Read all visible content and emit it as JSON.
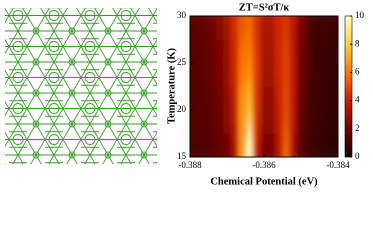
{
  "chart_data": {
    "type": "heatmap",
    "title": "ZT=S²σT/κ",
    "xlabel": "Chemical Potential (eV)",
    "ylabel": "Temperature (K)",
    "x": [
      -0.388,
      -0.3878,
      -0.3876,
      -0.3874,
      -0.3872,
      -0.387,
      -0.3868,
      -0.3866,
      -0.3864,
      -0.3862,
      -0.386,
      -0.3858,
      -0.3856,
      -0.3854,
      -0.3852,
      -0.385,
      -0.3848,
      -0.3846,
      -0.3844,
      -0.3842,
      -0.384
    ],
    "y": [
      15,
      20,
      25,
      30
    ],
    "z": [
      [
        1.2,
        1.2,
        1.3,
        1.4,
        1.6,
        2.0,
        3.0,
        6.5,
        10,
        4.0,
        2.2,
        2.2,
        3.5,
        5.5,
        3.0,
        1.4,
        0.9,
        0.7,
        0.6,
        0.5,
        0.5
      ],
      [
        1.4,
        1.4,
        1.5,
        1.7,
        2.0,
        2.6,
        3.8,
        6.5,
        7.5,
        4.5,
        2.8,
        2.8,
        4.0,
        5.0,
        3.5,
        1.8,
        1.1,
        0.8,
        0.7,
        0.6,
        0.6
      ],
      [
        1.5,
        1.5,
        1.7,
        1.9,
        2.3,
        3.0,
        4.2,
        5.8,
        6.2,
        4.6,
        3.2,
        3.2,
        4.2,
        4.8,
        3.6,
        2.1,
        1.3,
        0.9,
        0.8,
        0.7,
        0.7
      ],
      [
        1.6,
        1.6,
        1.8,
        2.1,
        2.5,
        3.2,
        4.3,
        5.2,
        5.5,
        4.5,
        3.4,
        3.4,
        4.2,
        4.5,
        3.6,
        2.3,
        1.5,
        1.0,
        0.9,
        0.8,
        0.8
      ]
    ],
    "xlim": [
      -0.388,
      -0.384
    ],
    "ylim": [
      15,
      30
    ],
    "xticks": [
      -0.388,
      -0.386,
      -0.384
    ],
    "yticks": [
      15,
      20,
      25,
      30
    ],
    "clim": [
      0,
      10
    ],
    "cticks": [
      0,
      2,
      4,
      6,
      8,
      10
    ],
    "colormap": [
      "#1a0000",
      "#6e0000",
      "#c81e00",
      "#ff7a00",
      "#ffd040",
      "#ffffc0"
    ]
  }
}
